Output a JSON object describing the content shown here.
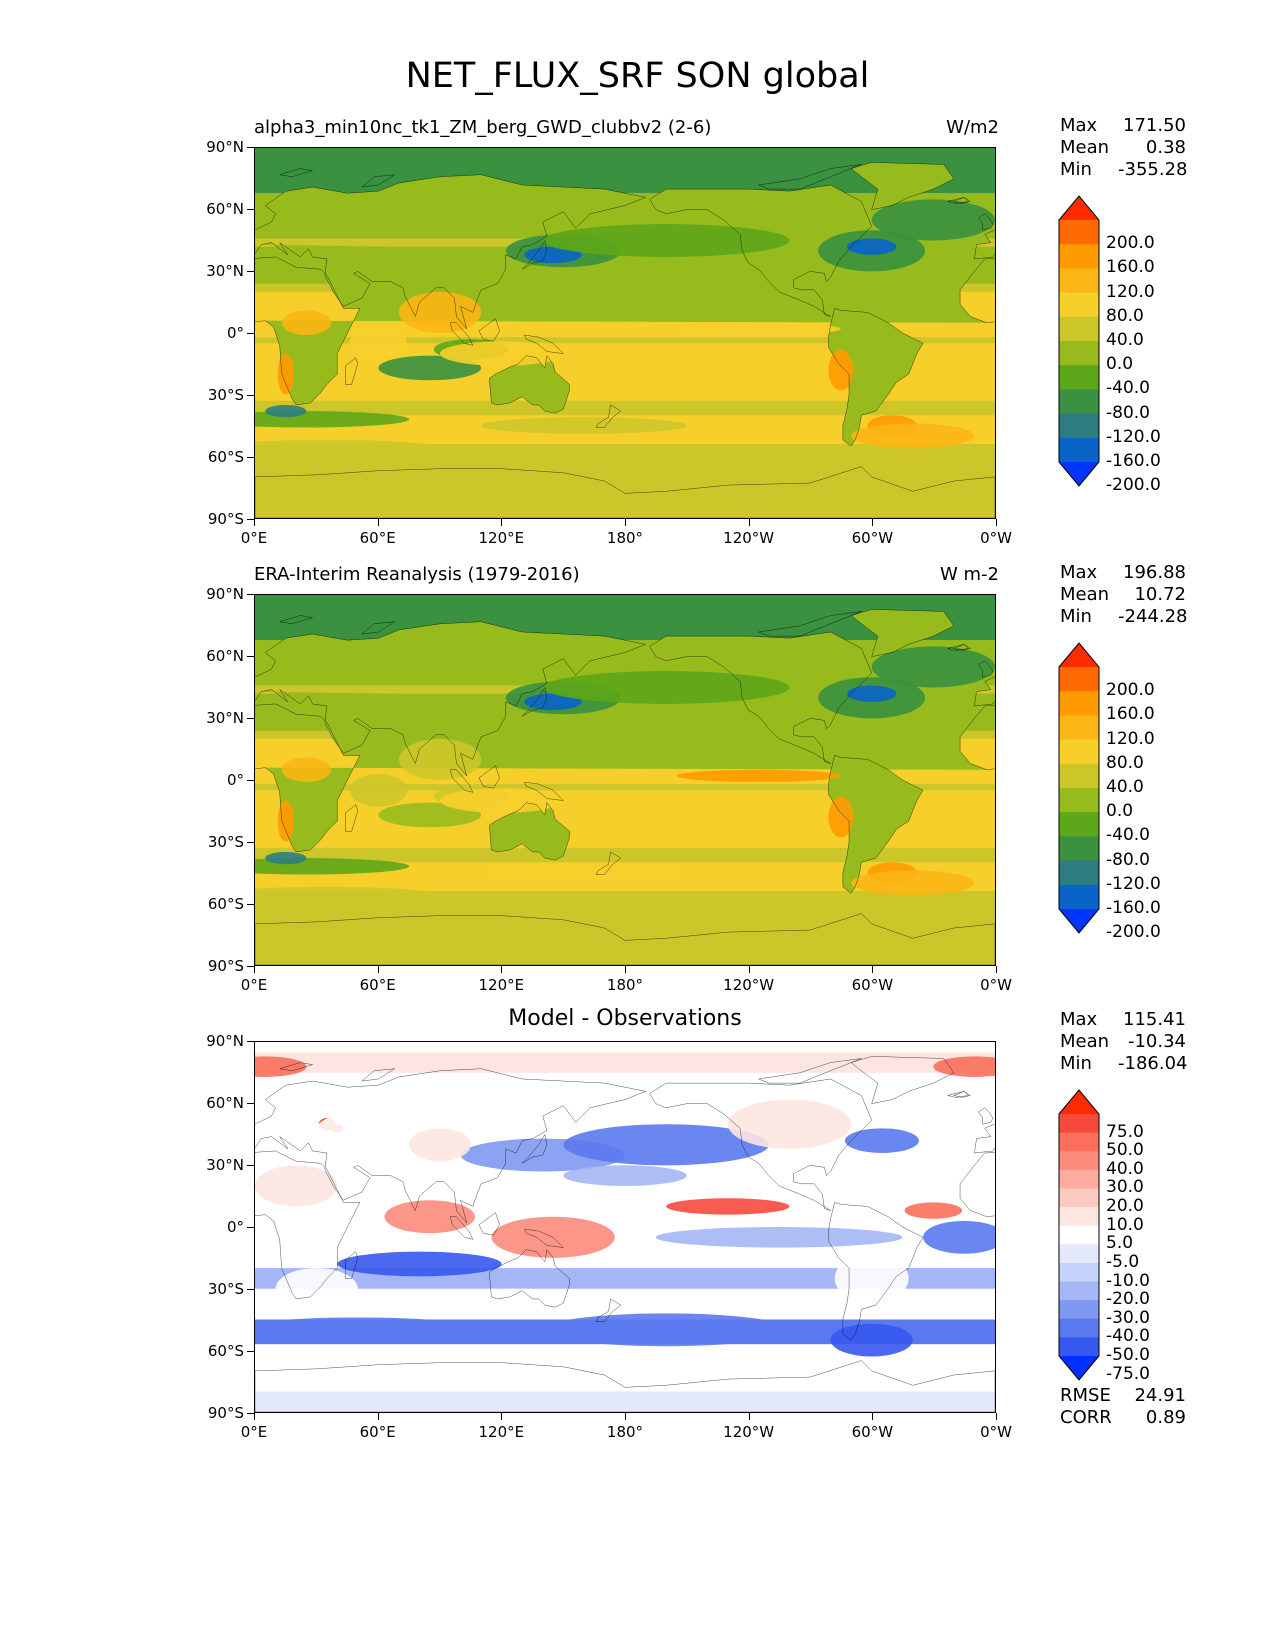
{
  "title": "NET_FLUX_SRF SON global",
  "x_ticks": [
    "0°E",
    "60°E",
    "120°E",
    "180°",
    "120°W",
    "60°W",
    "0°W"
  ],
  "y_ticks": [
    "90°N",
    "60°N",
    "30°N",
    "0°",
    "30°S",
    "60°S",
    "90°S"
  ],
  "panels": [
    {
      "title_left": "alpha3_min10nc_tk1_ZM_berg_GWD_clubbv2 (2-6)",
      "title_right": "W/m2",
      "title_center": "",
      "stats": {
        "max_label": "Max",
        "max": "171.50",
        "mean_label": "Mean",
        "mean": "0.38",
        "min_label": "Min",
        "min": "-355.28"
      },
      "colorbar_labels": [
        "200.0",
        "160.0",
        "120.0",
        "80.0",
        "40.0",
        "0.0",
        "-40.0",
        "-80.0",
        "-120.0",
        "-160.0",
        "-200.0"
      ],
      "colorbar_colors": [
        "#ff2b00",
        "#ff6a00",
        "#ff9a00",
        "#fbb514",
        "#f7cf2b",
        "#cdc62a",
        "#97bb1d",
        "#5ea61a",
        "#3a9140",
        "#2b7d82",
        "#0a64c8",
        "#0035ff"
      ],
      "scale": "full"
    },
    {
      "title_left": "ERA-Interim Reanalysis (1979-2016)",
      "title_right": "W m-2",
      "title_center": "",
      "stats": {
        "max_label": "Max",
        "max": "196.88",
        "mean_label": "Mean",
        "mean": "10.72",
        "min_label": "Min",
        "min": "-244.28"
      },
      "colorbar_labels": [
        "200.0",
        "160.0",
        "120.0",
        "80.0",
        "40.0",
        "0.0",
        "-40.0",
        "-80.0",
        "-120.0",
        "-160.0",
        "-200.0"
      ],
      "colorbar_colors": [
        "#ff2b00",
        "#ff6a00",
        "#ff9a00",
        "#fbb514",
        "#f7cf2b",
        "#cdc62a",
        "#97bb1d",
        "#5ea61a",
        "#3a9140",
        "#2b7d82",
        "#0a64c8",
        "#0035ff"
      ],
      "scale": "full"
    },
    {
      "title_left": "",
      "title_right": "",
      "title_center": "Model - Observations",
      "stats": {
        "max_label": "Max",
        "max": "115.41",
        "mean_label": "Mean",
        "mean": "-10.34",
        "min_label": "Min",
        "min": "-186.04"
      },
      "colorbar_labels": [
        "75.0",
        "50.0",
        "40.0",
        "30.0",
        "20.0",
        "10.0",
        "5.0",
        "-5.0",
        "-10.0",
        "-20.0",
        "-30.0",
        "-40.0",
        "-50.0",
        "-75.0"
      ],
      "colorbar_colors": [
        "#ff2a00",
        "#f74a3c",
        "#fb6f5c",
        "#fb8b7b",
        "#fcab9e",
        "#fdcac1",
        "#fde6e1",
        "#ffffff",
        "#e3e9fb",
        "#c6d2fa",
        "#a4b6f5",
        "#7f98f1",
        "#5a79ee",
        "#3658ee",
        "#0030ff"
      ],
      "scale": "diff",
      "rmse_label": "RMSE",
      "rmse": "24.91",
      "corr_label": "CORR",
      "corr": "0.89"
    }
  ]
}
